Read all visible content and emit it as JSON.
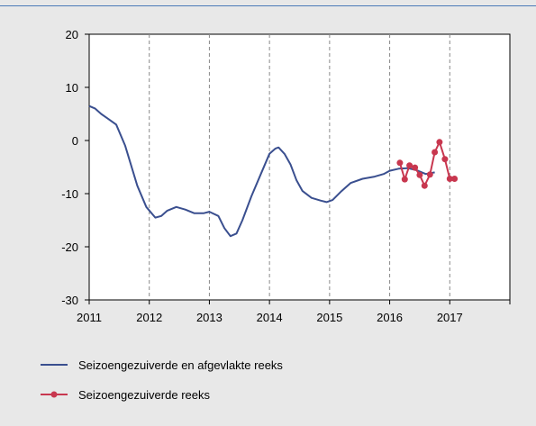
{
  "colors": {
    "smooth": "#3a4f8f",
    "raw": "#c8374f",
    "panel": "#e8e8e8",
    "accent": "#4a7ab8"
  },
  "chart_data": {
    "type": "line",
    "title": "",
    "xlabel": "",
    "ylabel": "",
    "xlim": [
      2011,
      2018
    ],
    "ylim": [
      -30,
      20
    ],
    "yticks": [
      "20",
      "10",
      "0",
      "-10",
      "-20",
      "-30"
    ],
    "ytick_values": [
      20,
      10,
      0,
      -10,
      -20,
      -30
    ],
    "xticks": [
      "2011",
      "2012",
      "2013",
      "2014",
      "2015",
      "2016",
      "2017"
    ],
    "xtick_values": [
      2011,
      2012,
      2013,
      2014,
      2015,
      2016,
      2017
    ],
    "grid": "vertical-dashed",
    "legend_placement": "bottom",
    "series": [
      {
        "name": "Seizoengezuiverde en afgevlakte reeks",
        "marker": "none",
        "x": [
          2011.0,
          2011.1,
          2011.2,
          2011.3,
          2011.45,
          2011.6,
          2011.8,
          2011.95,
          2012.1,
          2012.2,
          2012.3,
          2012.45,
          2012.6,
          2012.75,
          2012.9,
          2013.0,
          2013.15,
          2013.25,
          2013.35,
          2013.45,
          2013.55,
          2013.7,
          2013.85,
          2014.0,
          2014.1,
          2014.15,
          2014.25,
          2014.35,
          2014.45,
          2014.55,
          2014.7,
          2014.85,
          2014.95,
          2015.05,
          2015.2,
          2015.35,
          2015.55,
          2015.75,
          2015.9,
          2016.0,
          2016.15,
          2016.3,
          2016.45,
          2016.6,
          2016.75
        ],
        "y": [
          6.5,
          6.0,
          5.0,
          4.2,
          3.0,
          -1.0,
          -8.5,
          -12.5,
          -14.5,
          -14.2,
          -13.2,
          -12.5,
          -13.0,
          -13.7,
          -13.7,
          -13.4,
          -14.2,
          -16.5,
          -18.0,
          -17.5,
          -15.0,
          -10.5,
          -6.5,
          -2.5,
          -1.5,
          -1.3,
          -2.5,
          -4.5,
          -7.5,
          -9.5,
          -10.8,
          -11.3,
          -11.6,
          -11.2,
          -9.5,
          -8.0,
          -7.2,
          -6.8,
          -6.3,
          -5.7,
          -5.3,
          -5.2,
          -5.6,
          -6.3,
          -6.0
        ]
      },
      {
        "name": "Seizoengezuiverde reeks",
        "marker": "circle",
        "x": [
          2016.17,
          2016.25,
          2016.33,
          2016.42,
          2016.5,
          2016.58,
          2016.67,
          2016.75,
          2016.83,
          2016.92,
          2017.0,
          2017.08
        ],
        "y": [
          -4.2,
          -7.3,
          -4.7,
          -5.1,
          -6.5,
          -8.5,
          -6.4,
          -2.2,
          -0.3,
          -3.5,
          -7.2,
          -7.2
        ]
      }
    ]
  }
}
